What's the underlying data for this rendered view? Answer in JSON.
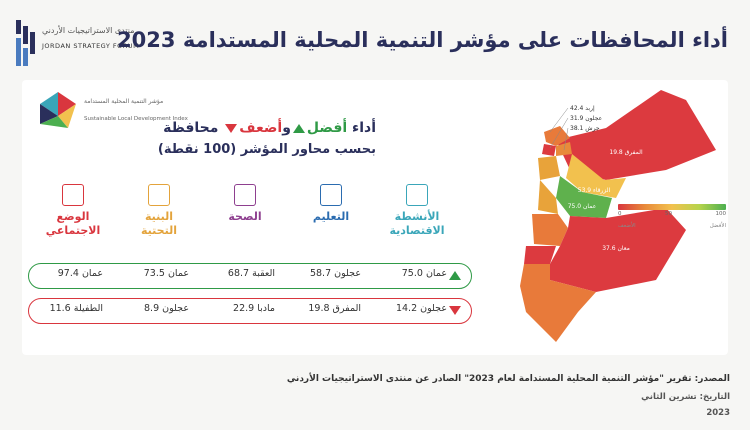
{
  "title": "أداء المحافظات على مؤشر التنمية المحلية المستدامة 2023",
  "logo": {
    "arabic": "منتدى الاستراتيجيات الأردني",
    "english": "JORDAN STRATEGY FORUM"
  },
  "index_logo": {
    "arabic": "مؤشر التنمية المحلية المستدامة",
    "english": "Sustainable Local Development Index"
  },
  "headline": {
    "prefix": "أداء",
    "best": "أفضل",
    "conj": "و",
    "worst": "أضعف",
    "suffix": "محافظة",
    "line2": "بحسب محاور المؤشر (100 نقطة)"
  },
  "axes": [
    {
      "id": "economic",
      "label1": "الأنشطة",
      "label2": "الاقتصادية",
      "color": "#3aa6b9"
    },
    {
      "id": "education",
      "label1": "التعليم",
      "label2": "",
      "color": "#2b6cb0"
    },
    {
      "id": "health",
      "label1": "الصحة",
      "label2": "",
      "color": "#8e3f8f"
    },
    {
      "id": "infrastructure",
      "label1": "البنية",
      "label2": "التحتية",
      "color": "#e3a33b"
    },
    {
      "id": "social",
      "label1": "الوضع",
      "label2": "الاجتماعي",
      "color": "#d9363e"
    }
  ],
  "best_row": [
    {
      "gov": "عمان",
      "score": "75.0"
    },
    {
      "gov": "عجلون",
      "score": "58.7"
    },
    {
      "gov": "العقبة",
      "score": "68.7"
    },
    {
      "gov": "عمان",
      "score": "73.5"
    },
    {
      "gov": "عمان",
      "score": "97.4"
    }
  ],
  "worst_row": [
    {
      "gov": "عجلون",
      "score": "14.2"
    },
    {
      "gov": "المفرق",
      "score": "19.8"
    },
    {
      "gov": "مادبا",
      "score": "22.9"
    },
    {
      "gov": "عجلون",
      "score": "8.9"
    },
    {
      "gov": "الطفيلة",
      "score": "11.6"
    }
  ],
  "map": {
    "annotations": [
      "إربد 42.4",
      "عجلون 31.9",
      "جرش 38.1"
    ],
    "labels": [
      {
        "name": "المفرق",
        "value": "19.8"
      },
      {
        "name": "الزرقاء",
        "value": "53.9"
      },
      {
        "name": "عمان",
        "value": "75.0"
      },
      {
        "name": "البلقاء",
        "value": ""
      },
      {
        "name": "مادبا",
        "value": ""
      },
      {
        "name": "الكرك",
        "value": ""
      },
      {
        "name": "الطفيلة",
        "value": ""
      },
      {
        "name": "معان",
        "value": "37.6"
      },
      {
        "name": "العقبة",
        "value": ""
      }
    ],
    "legend_min": "0",
    "legend_mid": "50",
    "legend_max": "100",
    "legend_low": "الأضعف",
    "legend_high": "الأفضل"
  },
  "source": "المصدر: تقرير \"مؤشر التنمية المحلية المستدامة لعام 2023\" الصادر عن منتدى الاستراتيجيات الأردني",
  "date_label": "التاريخ: تشرين الثاني",
  "date_year": "2023"
}
